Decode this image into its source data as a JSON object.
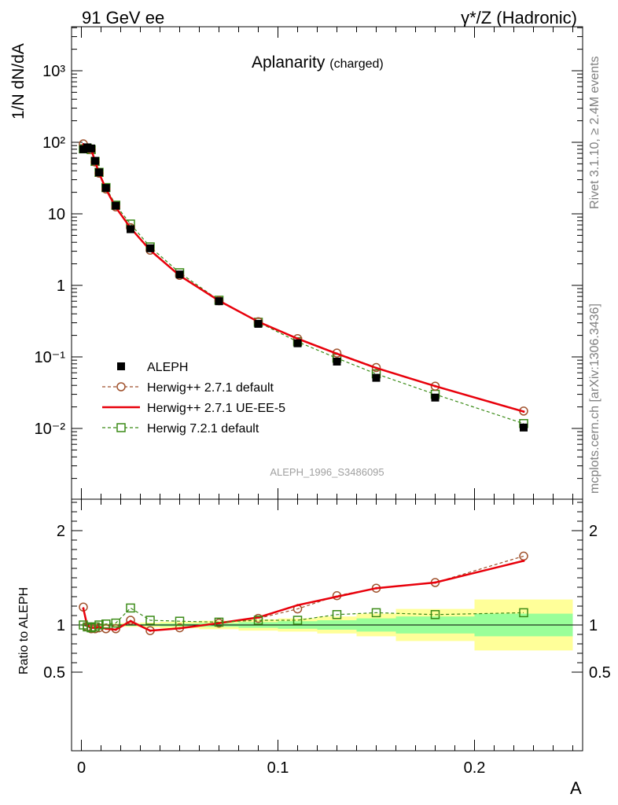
{
  "header": {
    "left": "91 GeV ee",
    "right": "γ*/Z (Hadronic)"
  },
  "side_labels": {
    "top": "Rivet 3.1.10, ≥ 2.4M events",
    "bottom": "mcplots.cern.ch [arXiv:1306.3436]"
  },
  "chart_data": [
    {
      "type": "scatter",
      "panel": "main",
      "title": "Aplanarity",
      "title_suffix": "(charged)",
      "ylabel": "1/N dN/dA",
      "yscale": "log",
      "ylim": [
        0.0005,
        4000
      ],
      "xlim": [
        -0.005,
        0.255
      ],
      "watermark": "ALEPH_1996_S3486095",
      "y_tick_labels": [
        "10⁻²",
        "10⁻¹",
        "1",
        "10",
        "10²",
        "10³"
      ],
      "x": [
        0.001,
        0.003,
        0.005,
        0.007,
        0.009,
        0.0125,
        0.0175,
        0.025,
        0.035,
        0.05,
        0.07,
        0.09,
        0.11,
        0.13,
        0.15,
        0.18,
        0.225
      ],
      "series": [
        {
          "name": "ALEPH",
          "style": "data",
          "color": "#000000",
          "values": [
            80,
            85,
            82,
            55,
            38,
            23,
            13,
            6.1,
            3.3,
            1.42,
            0.6,
            0.29,
            0.155,
            0.086,
            0.051,
            0.027,
            0.0103
          ]
        },
        {
          "name": "Herwig++ 2.7.1 default",
          "style": "circle-dashed",
          "color": "#a0522d",
          "values": [
            95,
            83,
            79,
            53,
            37,
            22.2,
            12.5,
            6.4,
            3.1,
            1.38,
            0.61,
            0.31,
            0.18,
            0.113,
            0.071,
            0.039,
            0.0175
          ]
        },
        {
          "name": "Herwig++ 2.7.1 UE-EE-5",
          "style": "line",
          "color": "#e8000b",
          "values": [
            94,
            84,
            80,
            53.5,
            37.2,
            22.1,
            12.3,
            6.35,
            3.1,
            1.37,
            0.61,
            0.31,
            0.18,
            0.111,
            0.07,
            0.039,
            0.0172
          ]
        },
        {
          "name": "Herwig 7.2.1 default",
          "style": "square-dashed",
          "color": "#3a8a16",
          "values": [
            81,
            83,
            79,
            54,
            38,
            23.3,
            13.2,
            7.2,
            3.45,
            1.5,
            0.62,
            0.305,
            0.163,
            0.096,
            0.058,
            0.03,
            0.0117
          ]
        }
      ]
    },
    {
      "type": "line",
      "panel": "ratio",
      "ylabel": "Ratio to ALEPH",
      "xlabel": "A",
      "ylim": [
        0.4,
        2.3
      ],
      "xlim": [
        -0.005,
        0.255
      ],
      "x_tick_labels": [
        "0",
        "0.1",
        "0.2"
      ],
      "y_tick_labels": [
        "0.5",
        "1",
        "2"
      ],
      "x": [
        0.001,
        0.003,
        0.005,
        0.007,
        0.009,
        0.0125,
        0.0175,
        0.025,
        0.035,
        0.05,
        0.07,
        0.09,
        0.11,
        0.13,
        0.15,
        0.18,
        0.225
      ],
      "bin_edges": [
        0.0,
        0.002,
        0.004,
        0.006,
        0.008,
        0.01,
        0.015,
        0.02,
        0.03,
        0.04,
        0.06,
        0.08,
        0.1,
        0.12,
        0.14,
        0.16,
        0.2,
        0.25
      ],
      "bands": {
        "stat_color": "#99ff99",
        "total_color": "#ffff99",
        "stat_halfwidth": [
          0.01,
          0.01,
          0.01,
          0.01,
          0.01,
          0.01,
          0.01,
          0.01,
          0.01,
          0.015,
          0.02,
          0.03,
          0.04,
          0.05,
          0.07,
          0.09,
          0.12
        ],
        "total_halfwidth": [
          0.015,
          0.015,
          0.015,
          0.015,
          0.015,
          0.015,
          0.015,
          0.02,
          0.025,
          0.035,
          0.045,
          0.06,
          0.07,
          0.09,
          0.12,
          0.17,
          0.27
        ]
      },
      "series": [
        {
          "name": "Herwig++ 2.7.1 default",
          "style": "circle-dashed",
          "color": "#a0522d",
          "values": [
            1.19,
            0.98,
            0.96,
            0.96,
            0.97,
            0.96,
            0.96,
            1.05,
            0.94,
            0.97,
            1.02,
            1.07,
            1.17,
            1.31,
            1.39,
            1.45,
            1.73
          ]
        },
        {
          "name": "Herwig++ 2.7.1 UE-EE-5",
          "style": "line",
          "color": "#e8000b",
          "values": [
            1.175,
            0.99,
            0.97,
            0.97,
            0.98,
            0.96,
            0.95,
            1.04,
            0.94,
            0.965,
            1.02,
            1.08,
            1.21,
            1.3,
            1.39,
            1.45,
            1.68
          ]
        },
        {
          "name": "Herwig 7.2.1 default",
          "style": "square-dashed",
          "color": "#3a8a16",
          "values": [
            1.0,
            0.98,
            0.97,
            0.98,
            1.0,
            1.01,
            1.02,
            1.18,
            1.05,
            1.04,
            1.03,
            1.05,
            1.05,
            1.11,
            1.13,
            1.11,
            1.13
          ]
        }
      ]
    }
  ]
}
